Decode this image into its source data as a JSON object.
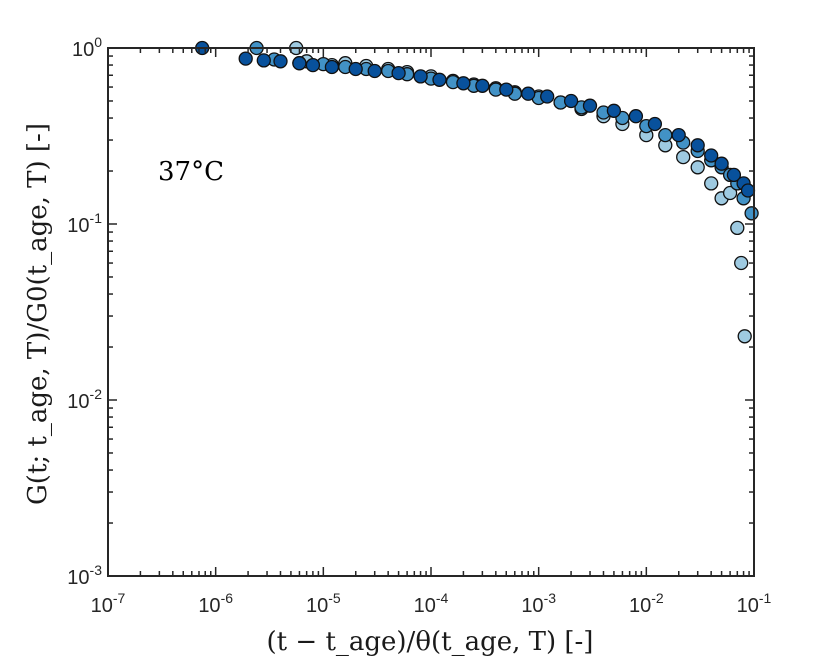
{
  "chart_data": {
    "type": "scatter",
    "title": "",
    "xlabel": "(t − t_age)/θ(t_age, T) [-]",
    "ylabel": "G(t; t_age, T)/G0(t_age, T) [-]",
    "annotation": "37°C",
    "xscale": "log",
    "yscale": "log",
    "xlim": [
      1e-07,
      0.1
    ],
    "ylim": [
      0.001,
      1
    ],
    "xticks": [
      {
        "value": 1e-07,
        "base": "10",
        "exp": "-7"
      },
      {
        "value": 1e-06,
        "base": "10",
        "exp": "-6"
      },
      {
        "value": 1e-05,
        "base": "10",
        "exp": "-5"
      },
      {
        "value": 0.0001,
        "base": "10",
        "exp": "-4"
      },
      {
        "value": 0.001,
        "base": "10",
        "exp": "-3"
      },
      {
        "value": 0.01,
        "base": "10",
        "exp": "-2"
      },
      {
        "value": 0.1,
        "base": "10",
        "exp": "-1"
      }
    ],
    "yticks": [
      {
        "value": 0.001,
        "base": "10",
        "exp": "-3"
      },
      {
        "value": 0.01,
        "base": "10",
        "exp": "-2"
      },
      {
        "value": 0.1,
        "base": "10",
        "exp": "-1"
      },
      {
        "value": 1,
        "base": "10",
        "exp": "0"
      }
    ],
    "grid": false,
    "legend": "none",
    "series": [
      {
        "color": "#9ecae1",
        "points": [
          [
            5.6e-06,
            1.0
          ],
          [
            7e-06,
            0.84
          ],
          [
            1.2e-05,
            0.8
          ],
          [
            1.6e-05,
            0.82
          ],
          [
            2.5e-05,
            0.79
          ],
          [
            4e-05,
            0.76
          ],
          [
            6e-05,
            0.73
          ],
          [
            0.0001,
            0.69
          ],
          [
            0.00016,
            0.65
          ],
          [
            0.00025,
            0.62
          ],
          [
            0.0004,
            0.59
          ],
          [
            0.0006,
            0.56
          ],
          [
            0.001,
            0.53
          ],
          [
            0.0016,
            0.49
          ],
          [
            0.0025,
            0.45
          ],
          [
            0.004,
            0.41
          ],
          [
            0.006,
            0.37
          ],
          [
            0.01,
            0.32
          ],
          [
            0.015,
            0.28
          ],
          [
            0.022,
            0.24
          ],
          [
            0.03,
            0.21
          ],
          [
            0.04,
            0.17
          ],
          [
            0.05,
            0.14
          ],
          [
            0.06,
            0.15
          ],
          [
            0.07,
            0.095
          ],
          [
            0.076,
            0.06
          ],
          [
            0.082,
            0.023
          ]
        ]
      },
      {
        "color": "#4292c6",
        "points": [
          [
            2.4e-06,
            1.0
          ],
          [
            3.5e-06,
            0.86
          ],
          [
            6e-06,
            0.82
          ],
          [
            1e-05,
            0.81
          ],
          [
            1.6e-05,
            0.78
          ],
          [
            2.5e-05,
            0.76
          ],
          [
            4e-05,
            0.74
          ],
          [
            6e-05,
            0.71
          ],
          [
            0.0001,
            0.67
          ],
          [
            0.00016,
            0.64
          ],
          [
            0.00025,
            0.61
          ],
          [
            0.0004,
            0.58
          ],
          [
            0.0006,
            0.55
          ],
          [
            0.001,
            0.52
          ],
          [
            0.0016,
            0.49
          ],
          [
            0.0025,
            0.46
          ],
          [
            0.004,
            0.43
          ],
          [
            0.006,
            0.4
          ],
          [
            0.01,
            0.36
          ],
          [
            0.015,
            0.32
          ],
          [
            0.022,
            0.29
          ],
          [
            0.03,
            0.26
          ],
          [
            0.04,
            0.23
          ],
          [
            0.05,
            0.21
          ],
          [
            0.06,
            0.19
          ],
          [
            0.07,
            0.17
          ],
          [
            0.08,
            0.14
          ],
          [
            0.095,
            0.115
          ]
        ]
      },
      {
        "color": "#08519c",
        "points": [
          [
            7.5e-07,
            1.0
          ],
          [
            1.9e-06,
            0.87
          ],
          [
            2.8e-06,
            0.85
          ],
          [
            4e-06,
            0.84
          ],
          [
            6e-06,
            0.82
          ],
          [
            8e-06,
            0.8
          ],
          [
            1.2e-05,
            0.78
          ],
          [
            2e-05,
            0.76
          ],
          [
            3e-05,
            0.74
          ],
          [
            5e-05,
            0.72
          ],
          [
            8e-05,
            0.69
          ],
          [
            0.00012,
            0.66
          ],
          [
            0.0002,
            0.63
          ],
          [
            0.0003,
            0.61
          ],
          [
            0.0005,
            0.58
          ],
          [
            0.0008,
            0.55
          ],
          [
            0.0012,
            0.53
          ],
          [
            0.002,
            0.5
          ],
          [
            0.003,
            0.47
          ],
          [
            0.005,
            0.44
          ],
          [
            0.008,
            0.41
          ],
          [
            0.012,
            0.37
          ],
          [
            0.02,
            0.32
          ],
          [
            0.03,
            0.28
          ],
          [
            0.04,
            0.245
          ],
          [
            0.05,
            0.22
          ],
          [
            0.065,
            0.19
          ],
          [
            0.08,
            0.17
          ],
          [
            0.088,
            0.155
          ]
        ]
      }
    ]
  }
}
